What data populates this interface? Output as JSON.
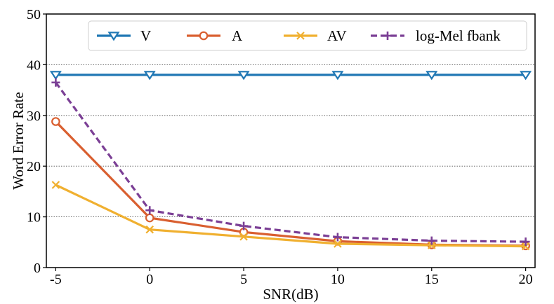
{
  "chart_data": {
    "type": "line",
    "xlabel": "SNR(dB)",
    "ylabel": "Word Error Rate",
    "x": [
      -5,
      0,
      5,
      10,
      15,
      20
    ],
    "x_tick_labels": [
      "-5",
      "0",
      "5",
      "10",
      "15",
      "20"
    ],
    "y_ticks": [
      0,
      10,
      20,
      30,
      40,
      50
    ],
    "y_tick_labels": [
      "0",
      "10",
      "20",
      "30",
      "40",
      "50"
    ],
    "xlim": [
      -5.5,
      20.5
    ],
    "ylim": [
      0,
      50
    ],
    "grid": "horizontal dotted",
    "legend_position": "top-right",
    "series": [
      {
        "name": "V",
        "values": [
          38,
          38,
          38,
          38,
          38,
          38
        ],
        "color": "#1f77b4",
        "marker": "triangle-down",
        "dash": "solid"
      },
      {
        "name": "A",
        "values": [
          28.8,
          9.8,
          7.0,
          5.2,
          4.5,
          4.3
        ],
        "color": "#d95f30",
        "marker": "circle",
        "dash": "solid"
      },
      {
        "name": "AV",
        "values": [
          16.3,
          7.5,
          6.1,
          4.7,
          4.4,
          4.2
        ],
        "color": "#f0b030",
        "marker": "x",
        "dash": "solid"
      },
      {
        "name": "log-Mel fbank",
        "values": [
          36.5,
          11.3,
          8.2,
          6.0,
          5.3,
          5.1
        ],
        "color": "#7b3f95",
        "marker": "plus",
        "dash": "dashed"
      }
    ]
  }
}
